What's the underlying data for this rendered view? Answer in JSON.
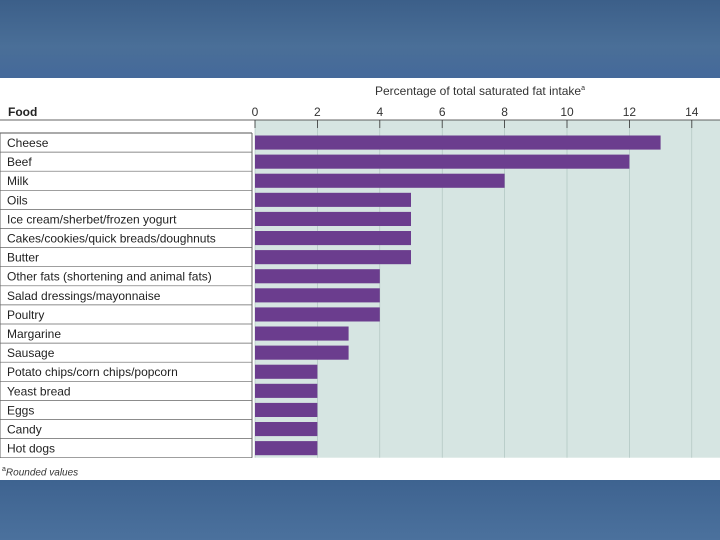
{
  "chart_data": {
    "type": "bar",
    "orientation": "horizontal",
    "title": "Percentage of total saturated fat intake",
    "title_footnote_mark": "a",
    "category_header": "Food",
    "categories": [
      "Cheese",
      "Beef",
      "Milk",
      "Oils",
      "Ice cream/sherbet/frozen yogurt",
      "Cakes/cookies/quick breads/doughnuts",
      "Butter",
      "Other fats (shortening and animal fats)",
      "Salad dressings/mayonnaise",
      "Poultry",
      "Margarine",
      "Sausage",
      "Potato chips/corn chips/popcorn",
      "Yeast bread",
      "Eggs",
      "Candy",
      "Hot dogs"
    ],
    "values": [
      13,
      12,
      8,
      5,
      5,
      5,
      5,
      4,
      4,
      4,
      3,
      3,
      2,
      2,
      2,
      2,
      2
    ],
    "xlim": [
      0,
      14
    ],
    "x_ticks": [
      0,
      2,
      4,
      6,
      8,
      10,
      12,
      14
    ],
    "grid": true,
    "bar_color": "#6b3d8e",
    "plot_background": "#d6e5e2",
    "footnote_mark": "a",
    "footnote": "Rounded values"
  }
}
